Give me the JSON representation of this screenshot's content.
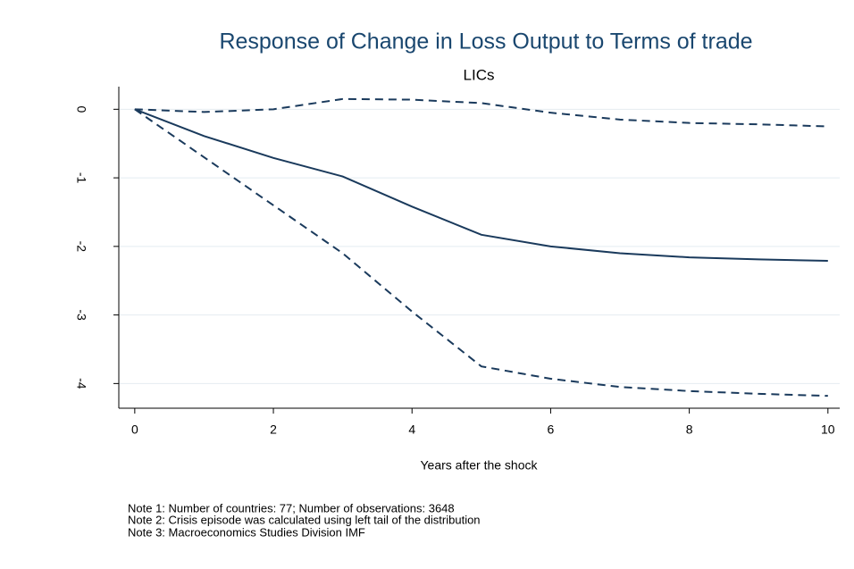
{
  "chart_data": {
    "type": "line",
    "title": "Response of Change in Loss Output to Terms of trade",
    "subtitle": "LICs",
    "x_label": "Years after the shock",
    "x": [
      0,
      1,
      2,
      3,
      4,
      5,
      6,
      7,
      8,
      9,
      10
    ],
    "series": [
      {
        "color": "#1a3a5c",
        "style": "solid",
        "values": [
          0,
          -0.39,
          -0.71,
          -0.98,
          -1.42,
          -1.83,
          -2.0,
          -2.1,
          -2.16,
          -2.19,
          -2.21
        ]
      },
      {
        "color": "#1a3a5c",
        "style": "dashed",
        "values": [
          0,
          -0.04,
          0.0,
          0.15,
          0.14,
          0.09,
          -0.05,
          -0.15,
          -0.2,
          -0.22,
          -0.25
        ]
      },
      {
        "color": "#1a3a5c",
        "style": "dashed",
        "values": [
          0,
          -0.7,
          -1.4,
          -2.1,
          -2.95,
          -3.75,
          -3.93,
          -4.05,
          -4.11,
          -4.15,
          -4.18
        ]
      }
    ],
    "xlim": [
      -0.23,
      10.17
    ],
    "xticks": [
      0,
      2,
      4,
      6,
      8,
      10
    ],
    "ylim": [
      -4.36,
      0.33
    ],
    "yticks": [
      0,
      -1,
      -2,
      -3,
      -4
    ],
    "grid": true,
    "notes": [
      "Note 1: Number of countries: 77; Number of observations: 3648",
      "Note 2: Crisis episode was calculated using left tail of the distribution",
      "Note 3: Macroeconomics Studies Division IMF"
    ]
  }
}
